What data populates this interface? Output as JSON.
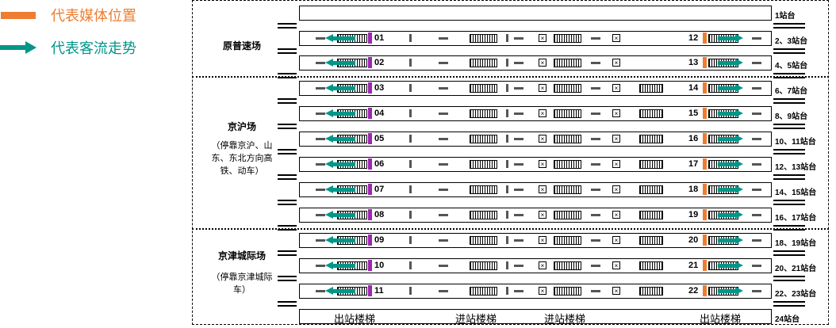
{
  "legend": {
    "media_label": "代表媒体位置",
    "flow_label": "代表客流走势",
    "media_color": "#ED7D31",
    "flow_color": "#009688",
    "left_media_color": "#9C27B0"
  },
  "groups": [
    {
      "name": "原普速场",
      "note": ""
    },
    {
      "name": "京沪场",
      "note": "（停靠京沪、山东、东北方向高铁、动车）"
    },
    {
      "name": "京津城际场",
      "note": "（停靠京津城际车）"
    }
  ],
  "platforms": [
    {
      "label": "1站台",
      "left": "",
      "right": ""
    },
    {
      "label": "2、3站台",
      "left": "01",
      "right": "12"
    },
    {
      "label": "4、5站台",
      "left": "02",
      "right": "13"
    },
    {
      "label": "6、7站台",
      "left": "03",
      "right": "14"
    },
    {
      "label": "8、9站台",
      "left": "04",
      "right": "15"
    },
    {
      "label": "10、11站台",
      "left": "05",
      "right": "16"
    },
    {
      "label": "12、13站台",
      "left": "06",
      "right": "17"
    },
    {
      "label": "14、15站台",
      "left": "07",
      "right": "18"
    },
    {
      "label": "16、17站台",
      "left": "08",
      "right": "19"
    },
    {
      "label": "18、19站台",
      "left": "09",
      "right": "20"
    },
    {
      "label": "20、21站台",
      "left": "10",
      "right": "21"
    },
    {
      "label": "22、23站台",
      "left": "11",
      "right": "22"
    },
    {
      "label": "24站台",
      "left": "",
      "right": ""
    }
  ],
  "stair_labels": [
    "出站楼梯",
    "进站楼梯",
    "进站楼梯",
    "出站楼梯"
  ]
}
